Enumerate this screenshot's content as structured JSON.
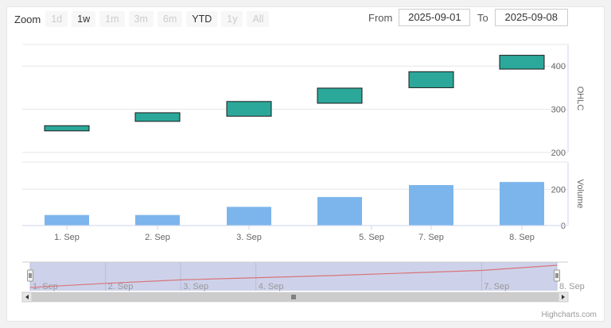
{
  "range_selector": {
    "zoom_label": "Zoom",
    "buttons": [
      {
        "label": "1d",
        "enabled": false
      },
      {
        "label": "1w",
        "enabled": true
      },
      {
        "label": "1m",
        "enabled": false
      },
      {
        "label": "3m",
        "enabled": false
      },
      {
        "label": "6m",
        "enabled": false
      },
      {
        "label": "YTD",
        "enabled": true
      },
      {
        "label": "1y",
        "enabled": false
      },
      {
        "label": "All",
        "enabled": false
      }
    ],
    "from_label": "From",
    "from_value": "2025-09-01",
    "to_label": "To",
    "to_value": "2025-09-08"
  },
  "credits": "Highcharts.com",
  "chart_data": [
    {
      "type": "ohlc",
      "ylabel": "OHLC",
      "ylim": [
        200,
        450
      ],
      "yticks": [
        200,
        300,
        400
      ],
      "x_dates": [
        "2025-09-01",
        "2025-09-02",
        "2025-09-03",
        "2025-09-05",
        "2025-09-07",
        "2025-09-08"
      ],
      "candles": [
        {
          "open": 250,
          "close": 262
        },
        {
          "open": 272,
          "close": 292
        },
        {
          "open": 284,
          "close": 318
        },
        {
          "open": 314,
          "close": 349
        },
        {
          "open": 350,
          "close": 387
        },
        {
          "open": 393,
          "close": 425
        }
      ],
      "color": "#2ba89a"
    },
    {
      "type": "bar",
      "ylabel": "Volume",
      "ylim": [
        0,
        350
      ],
      "yticks": [
        0,
        200
      ],
      "x_dates": [
        "2025-09-01",
        "2025-09-02",
        "2025-09-03",
        "2025-09-05",
        "2025-09-07",
        "2025-09-08"
      ],
      "values": [
        58,
        58,
        103,
        157,
        223,
        240
      ],
      "color": "#7cb5ec"
    }
  ],
  "x_axis": {
    "tick_labels": [
      {
        "date": "2025-09-01",
        "label": "1. Sep"
      },
      {
        "date": "2025-09-02",
        "label": "2. Sep"
      },
      {
        "date": "2025-09-03",
        "label": "3. Sep"
      },
      {
        "date": "2025-09-05",
        "label": "5. Sep"
      },
      {
        "date": "2025-09-07",
        "label": "7. Sep"
      },
      {
        "date": "2025-09-08",
        "label": "8. Sep"
      }
    ]
  },
  "navigator": {
    "tick_labels": [
      {
        "date": "2025-09-01",
        "label": "1. Sep"
      },
      {
        "date": "2025-09-02",
        "label": "2. Sep"
      },
      {
        "date": "2025-09-03",
        "label": "3. Sep"
      },
      {
        "date": "2025-09-04",
        "label": "4. Sep"
      },
      {
        "date": "2025-09-07",
        "label": "7. Sep"
      },
      {
        "date": "2025-09-08",
        "label": "8. Sep"
      }
    ],
    "line_color": "#d9747a",
    "mask_color": "#c8cde8"
  }
}
